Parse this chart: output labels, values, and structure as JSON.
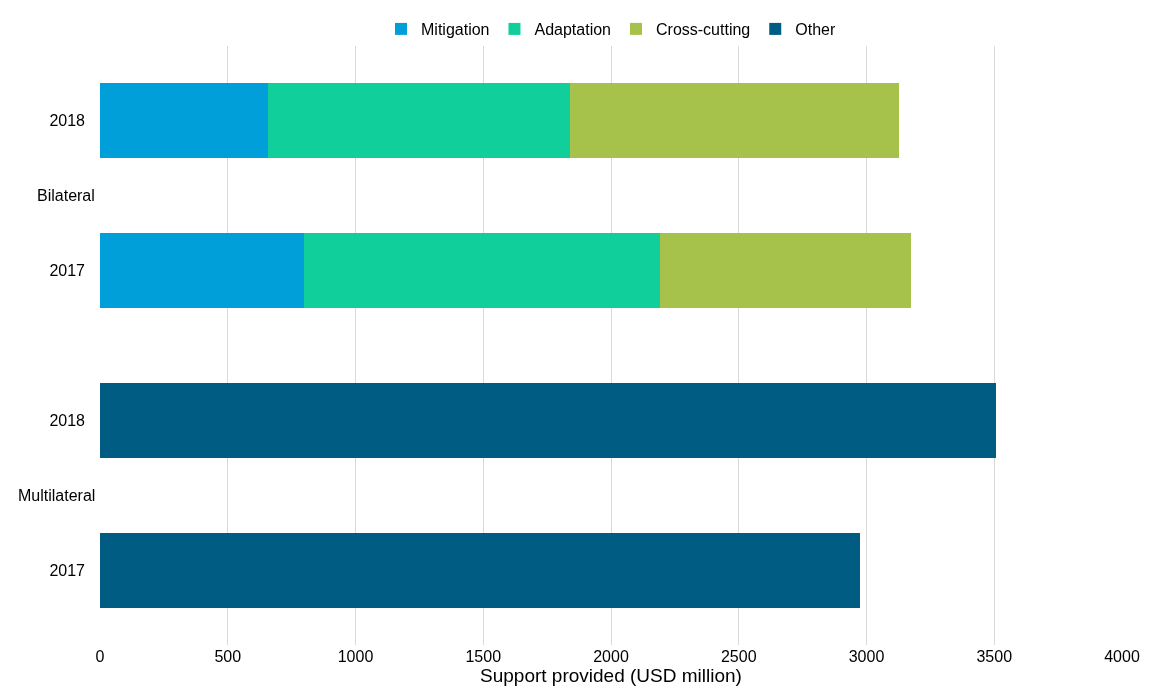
{
  "chart_data": {
    "type": "bar",
    "orientation": "horizontal",
    "stacked": true,
    "xlabel": "Support provided (USD million)",
    "categories": [
      "2018",
      "2017",
      "2018",
      "2017"
    ],
    "annotations": [
      "Bilateral",
      "Multilateral"
    ],
    "series": [
      {
        "name": "Mitigation",
        "color": "#009fda",
        "values": [
          658,
          798,
          null,
          null
        ]
      },
      {
        "name": "Adaptation",
        "color": "#11cf9b",
        "values": [
          1181,
          1394,
          null,
          null
        ]
      },
      {
        "name": "Cross-cutting",
        "color": "#a6c24a",
        "values": [
          1290,
          983,
          null,
          null
        ]
      },
      {
        "name": "Other",
        "color": "#005c82",
        "values": [
          null,
          null,
          3505,
          2974
        ]
      }
    ],
    "xlim": [
      0,
      4000
    ],
    "xticks": [
      0,
      500,
      1000,
      1500,
      2000,
      2500,
      3000,
      3500,
      4000
    ],
    "grid": "x",
    "legend": "top"
  }
}
